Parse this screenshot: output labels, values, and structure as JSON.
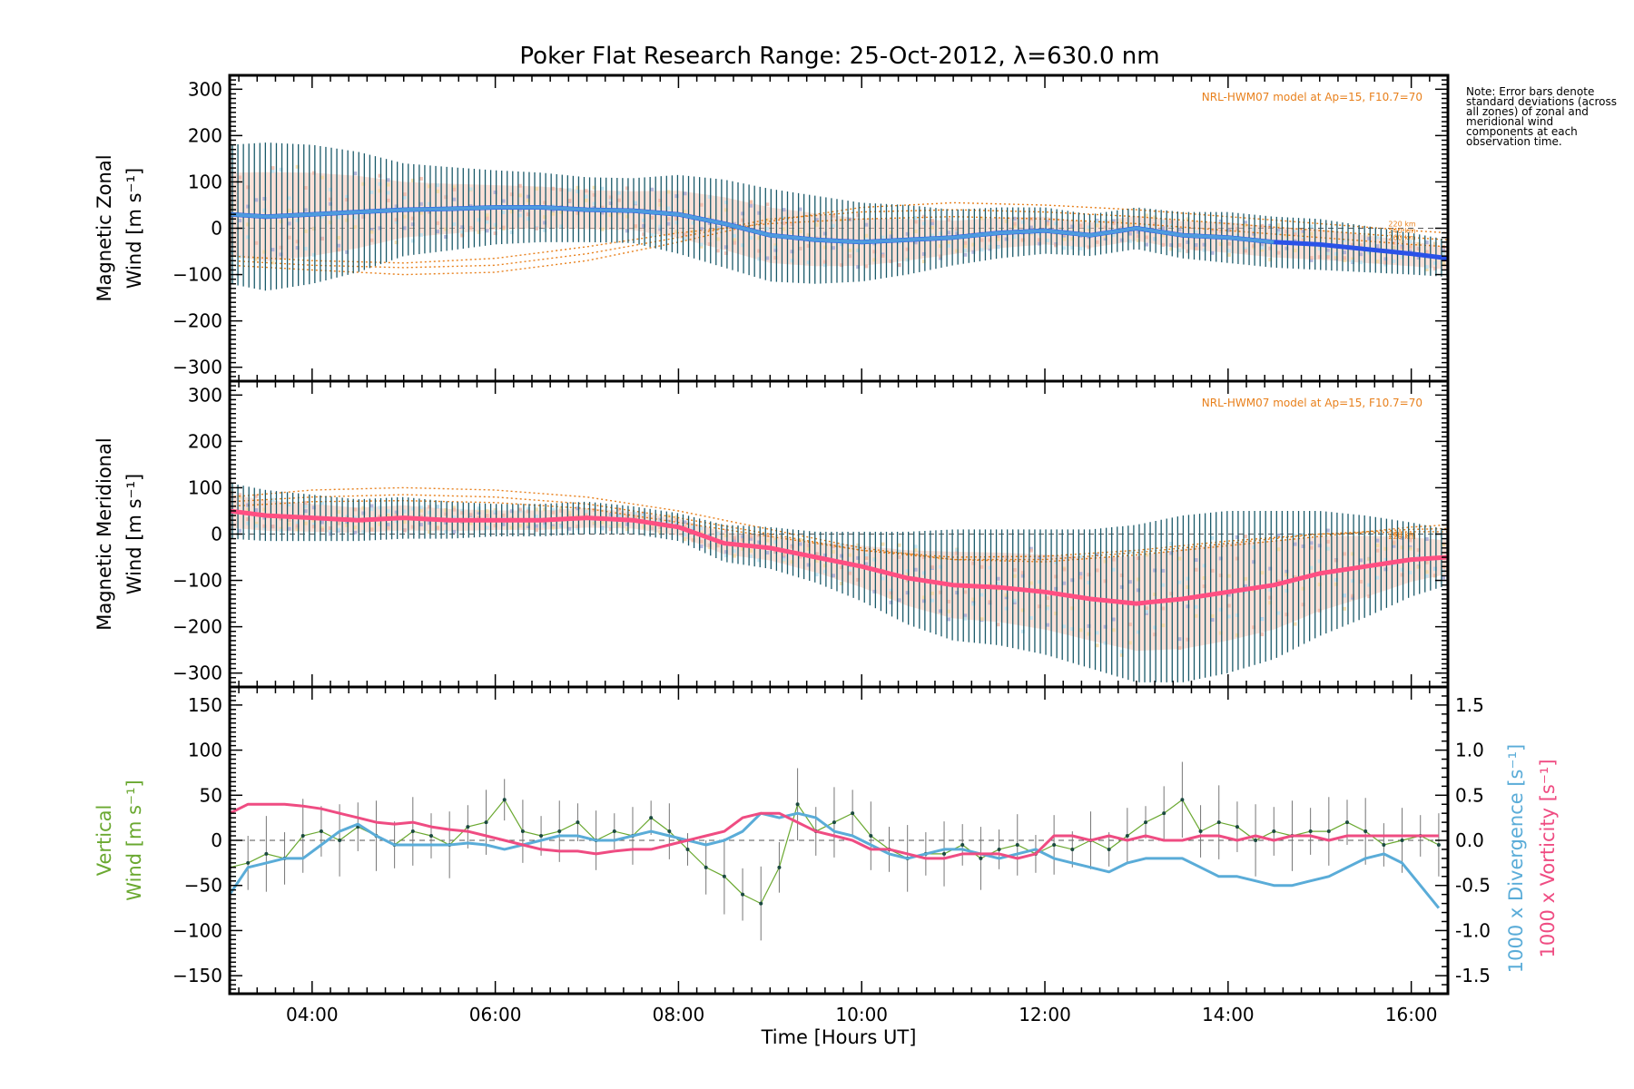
{
  "title": "Poker Flat Research Range: 25-Oct-2012, λ=630.0 nm",
  "note": "Note: Error bars denote standard deviations (across all zones) of zonal and meridional wind components at each observation time.",
  "colors": {
    "zonal_mean": "#2a52e8",
    "zonal_mean_alt": "#55a8dc",
    "meridional_mean": "#ff4f82",
    "errorbar": "#1a5a6a",
    "model": "#e8801c",
    "vertical": "#6aa830",
    "divergence": "#5aacd8",
    "vorticity": "#ef4c82",
    "zone_points": "#a9a9d6"
  },
  "chart_data": [
    {
      "type": "line",
      "panel": "zonal",
      "ylabel_line1": "Magnetic Zonal",
      "ylabel_line2": "Wind [m s⁻¹]",
      "ylim": [
        -330,
        330
      ],
      "yticks": [
        -300,
        -200,
        -100,
        0,
        100,
        200,
        300
      ],
      "xlim": [
        3.1,
        16.4
      ],
      "model_label": "NRL-HWM07 model at Ap=15, F10.7=70",
      "model_heights": [
        "220 km",
        "240 km",
        "260 km"
      ],
      "series": [
        {
          "x": [
            3.1,
            3.5,
            4.0,
            4.5,
            5.0,
            5.5,
            6.0,
            6.5,
            7.0,
            7.5,
            8.0,
            8.5,
            9.0,
            9.5,
            10.0,
            10.5,
            11.0,
            11.5,
            12.0,
            12.5,
            13.0,
            13.5,
            14.0,
            14.5,
            15.0,
            15.5,
            16.0,
            16.4
          ],
          "y": [
            30,
            25,
            30,
            35,
            40,
            42,
            45,
            45,
            40,
            38,
            30,
            10,
            -15,
            -25,
            -30,
            -25,
            -20,
            -10,
            -5,
            -15,
            0,
            -15,
            -20,
            -30,
            -35,
            -45,
            -55,
            -65
          ]
        }
      ],
      "spread": [
        150,
        160,
        150,
        130,
        100,
        90,
        80,
        75,
        70,
        70,
        85,
        95,
        100,
        95,
        85,
        75,
        60,
        55,
        50,
        45,
        45,
        50,
        55,
        55,
        55,
        50,
        45,
        40
      ],
      "model": [
        {
          "x": [
            3.1,
            4.0,
            5.0,
            6.0,
            7.0,
            8.0,
            9.0,
            10.0,
            11.0,
            12.0,
            13.0,
            14.0,
            15.0,
            16.0,
            16.4
          ],
          "y": [
            -80,
            -90,
            -100,
            -95,
            -70,
            -30,
            15,
            45,
            55,
            50,
            40,
            25,
            10,
            -5,
            -10
          ]
        },
        {
          "x": [
            3.1,
            4.0,
            5.0,
            6.0,
            7.0,
            8.0,
            9.0,
            10.0,
            11.0,
            12.0,
            13.0,
            14.0,
            15.0,
            16.0,
            16.4
          ],
          "y": [
            -70,
            -80,
            -85,
            -80,
            -55,
            -20,
            20,
            35,
            40,
            35,
            25,
            10,
            -5,
            -20,
            -25
          ]
        },
        {
          "x": [
            3.1,
            4.0,
            5.0,
            6.0,
            7.0,
            8.0,
            9.0,
            10.0,
            11.0,
            12.0,
            13.0,
            14.0,
            15.0,
            16.0,
            16.4
          ],
          "y": [
            -60,
            -70,
            -75,
            -65,
            -40,
            -10,
            10,
            20,
            25,
            20,
            10,
            -5,
            -20,
            -35,
            -40
          ]
        }
      ]
    },
    {
      "type": "line",
      "panel": "meridional",
      "ylabel_line1": "Magnetic Meridional",
      "ylabel_line2": "Wind [m s⁻¹]",
      "ylim": [
        -330,
        330
      ],
      "yticks": [
        -300,
        -200,
        -100,
        0,
        100,
        200,
        300
      ],
      "xlim": [
        3.1,
        16.4
      ],
      "model_label": "NRL-HWM07 model at Ap=15, F10.7=70",
      "model_heights": [
        "220 km",
        "240 km",
        "260 km"
      ],
      "series": [
        {
          "x": [
            3.1,
            3.5,
            4.0,
            4.5,
            5.0,
            5.5,
            6.0,
            6.5,
            7.0,
            7.5,
            8.0,
            8.5,
            9.0,
            9.5,
            10.0,
            10.5,
            11.0,
            11.5,
            12.0,
            12.5,
            13.0,
            13.5,
            14.0,
            14.5,
            15.0,
            15.5,
            16.0,
            16.4
          ],
          "y": [
            50,
            40,
            35,
            30,
            35,
            30,
            30,
            30,
            35,
            30,
            15,
            -20,
            -30,
            -50,
            -70,
            -95,
            -110,
            -115,
            -125,
            -140,
            -150,
            -140,
            -125,
            -110,
            -85,
            -70,
            -55,
            -50
          ]
        }
      ],
      "spread": [
        60,
        55,
        50,
        45,
        45,
        40,
        35,
        35,
        35,
        30,
        30,
        40,
        45,
        55,
        75,
        100,
        120,
        125,
        135,
        150,
        170,
        180,
        175,
        160,
        135,
        110,
        80,
        60
      ],
      "model": [
        {
          "x": [
            3.1,
            4.0,
            5.0,
            6.0,
            7.0,
            8.0,
            9.0,
            10.0,
            11.0,
            12.0,
            13.0,
            14.0,
            15.0,
            16.0,
            16.4
          ],
          "y": [
            80,
            95,
            100,
            95,
            80,
            50,
            10,
            -30,
            -55,
            -60,
            -45,
            -25,
            -5,
            15,
            20
          ]
        },
        {
          "x": [
            3.1,
            4.0,
            5.0,
            6.0,
            7.0,
            8.0,
            9.0,
            10.0,
            11.0,
            12.0,
            13.0,
            14.0,
            15.0,
            16.0,
            16.4
          ],
          "y": [
            70,
            80,
            85,
            80,
            65,
            35,
            0,
            -35,
            -55,
            -55,
            -40,
            -20,
            0,
            10,
            12
          ]
        },
        {
          "x": [
            3.1,
            4.0,
            5.0,
            6.0,
            7.0,
            8.0,
            9.0,
            10.0,
            11.0,
            12.0,
            13.0,
            14.0,
            15.0,
            16.0,
            16.4
          ],
          "y": [
            60,
            70,
            72,
            68,
            55,
            25,
            -5,
            -35,
            -50,
            -48,
            -35,
            -15,
            0,
            5,
            5
          ]
        }
      ]
    },
    {
      "type": "line",
      "panel": "vertical",
      "ylabel_line1": "Vertical",
      "ylabel_line2": "Wind [m s⁻¹]",
      "ylim": [
        -170,
        170
      ],
      "yticks": [
        -150,
        -100,
        -50,
        0,
        50,
        100,
        150
      ],
      "y2lim": [
        -1.7,
        1.7
      ],
      "y2ticks": [
        -1.5,
        -1.0,
        -0.5,
        0.0,
        0.5,
        1.0,
        1.5
      ],
      "y2label_div": "1000 x Divergence [s⁻¹]",
      "y2label_vort": "1000 x Vorticity [s⁻¹]",
      "xlim": [
        3.1,
        16.4
      ],
      "xticks": [
        "04:00",
        "06:00",
        "08:00",
        "10:00",
        "12:00",
        "14:00",
        "16:00"
      ],
      "xtick_values": [
        4,
        6,
        8,
        10,
        12,
        14,
        16
      ],
      "xlabel": "Time [Hours UT]",
      "series": [
        {
          "name": "vertical",
          "x": [
            3.1,
            3.3,
            3.5,
            3.7,
            3.9,
            4.1,
            4.3,
            4.5,
            4.7,
            4.9,
            5.1,
            5.3,
            5.5,
            5.7,
            5.9,
            6.1,
            6.3,
            6.5,
            6.7,
            6.9,
            7.1,
            7.3,
            7.5,
            7.7,
            7.9,
            8.1,
            8.3,
            8.5,
            8.7,
            8.9,
            9.1,
            9.3,
            9.5,
            9.7,
            9.9,
            10.1,
            10.3,
            10.5,
            10.7,
            10.9,
            11.1,
            11.3,
            11.5,
            11.7,
            11.9,
            12.1,
            12.3,
            12.5,
            12.7,
            12.9,
            13.1,
            13.3,
            13.5,
            13.7,
            13.9,
            14.1,
            14.3,
            14.5,
            14.7,
            14.9,
            15.1,
            15.3,
            15.5,
            15.7,
            15.9,
            16.1,
            16.3
          ],
          "y": [
            -30,
            -25,
            -15,
            -20,
            5,
            10,
            0,
            15,
            5,
            -5,
            10,
            5,
            -5,
            15,
            20,
            45,
            10,
            5,
            10,
            20,
            0,
            10,
            5,
            25,
            10,
            -10,
            -30,
            -40,
            -60,
            -70,
            -30,
            40,
            10,
            20,
            30,
            5,
            -10,
            -20,
            -15,
            -15,
            -5,
            -20,
            -10,
            -5,
            -15,
            -5,
            -10,
            0,
            -10,
            5,
            20,
            30,
            45,
            10,
            20,
            15,
            0,
            10,
            5,
            10,
            10,
            20,
            10,
            -5,
            0,
            5,
            -5
          ]
        },
        {
          "name": "divergence",
          "x": [
            3.1,
            3.3,
            3.5,
            3.7,
            3.9,
            4.1,
            4.3,
            4.5,
            4.7,
            4.9,
            5.1,
            5.3,
            5.5,
            5.7,
            5.9,
            6.1,
            6.3,
            6.5,
            6.7,
            6.9,
            7.1,
            7.3,
            7.5,
            7.7,
            7.9,
            8.1,
            8.3,
            8.5,
            8.7,
            8.9,
            9.1,
            9.3,
            9.5,
            9.7,
            9.9,
            10.1,
            10.3,
            10.5,
            10.7,
            10.9,
            11.1,
            11.3,
            11.5,
            11.7,
            11.9,
            12.1,
            12.3,
            12.5,
            12.7,
            12.9,
            13.1,
            13.3,
            13.5,
            13.7,
            13.9,
            14.1,
            14.3,
            14.5,
            14.7,
            14.9,
            15.1,
            15.3,
            15.5,
            15.7,
            15.9,
            16.1,
            16.3
          ],
          "y": [
            -0.6,
            -0.3,
            -0.25,
            -0.2,
            -0.2,
            -0.05,
            0.1,
            0.18,
            0.05,
            -0.05,
            -0.05,
            -0.05,
            -0.05,
            -0.03,
            -0.05,
            -0.1,
            -0.05,
            0.0,
            0.05,
            0.05,
            0.0,
            0.0,
            0.05,
            0.1,
            0.05,
            0.0,
            -0.05,
            0.0,
            0.1,
            0.3,
            0.25,
            0.3,
            0.25,
            0.1,
            0.05,
            -0.05,
            -0.15,
            -0.2,
            -0.15,
            -0.1,
            -0.1,
            -0.15,
            -0.2,
            -0.15,
            -0.1,
            -0.2,
            -0.25,
            -0.3,
            -0.35,
            -0.25,
            -0.2,
            -0.2,
            -0.2,
            -0.3,
            -0.4,
            -0.4,
            -0.45,
            -0.5,
            -0.5,
            -0.45,
            -0.4,
            -0.3,
            -0.2,
            -0.15,
            -0.25,
            -0.5,
            -0.75
          ]
        },
        {
          "name": "vorticity",
          "x": [
            3.1,
            3.3,
            3.5,
            3.7,
            3.9,
            4.1,
            4.3,
            4.5,
            4.7,
            4.9,
            5.1,
            5.3,
            5.5,
            5.7,
            5.9,
            6.1,
            6.3,
            6.5,
            6.7,
            6.9,
            7.1,
            7.3,
            7.5,
            7.7,
            7.9,
            8.1,
            8.3,
            8.5,
            8.7,
            8.9,
            9.1,
            9.3,
            9.5,
            9.7,
            9.9,
            10.1,
            10.3,
            10.5,
            10.7,
            10.9,
            11.1,
            11.3,
            11.5,
            11.7,
            11.9,
            12.1,
            12.3,
            12.5,
            12.7,
            12.9,
            13.1,
            13.3,
            13.5,
            13.7,
            13.9,
            14.1,
            14.3,
            14.5,
            14.7,
            14.9,
            15.1,
            15.3,
            15.5,
            15.7,
            15.9,
            16.1,
            16.3
          ],
          "y": [
            0.3,
            0.4,
            0.4,
            0.4,
            0.38,
            0.35,
            0.3,
            0.25,
            0.2,
            0.18,
            0.2,
            0.15,
            0.12,
            0.1,
            0.05,
            0.0,
            -0.05,
            -0.1,
            -0.12,
            -0.12,
            -0.15,
            -0.12,
            -0.1,
            -0.1,
            -0.05,
            0.0,
            0.05,
            0.1,
            0.25,
            0.3,
            0.3,
            0.2,
            0.1,
            0.05,
            0.0,
            -0.1,
            -0.1,
            -0.15,
            -0.2,
            -0.2,
            -0.15,
            -0.15,
            -0.15,
            -0.2,
            -0.15,
            0.05,
            0.05,
            0.0,
            0.05,
            0.0,
            0.05,
            0.0,
            0.0,
            0.05,
            0.05,
            0.0,
            0.05,
            0.0,
            0.05,
            0.05,
            0.0,
            0.05,
            0.05,
            0.05,
            0.05,
            0.05,
            0.05
          ]
        }
      ]
    }
  ]
}
